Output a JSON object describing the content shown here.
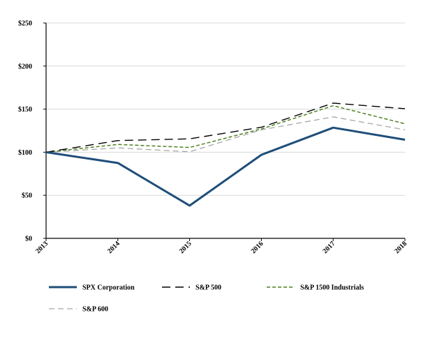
{
  "chart_data": {
    "type": "line",
    "title": "",
    "xlabel": "",
    "ylabel": "",
    "x": [
      "2013",
      "2014",
      "2015",
      "2016",
      "2017",
      "2018"
    ],
    "ylim": [
      0,
      250
    ],
    "yticks": [
      0,
      50,
      100,
      150,
      200,
      250
    ],
    "ytick_labels": [
      "$0",
      "$50",
      "$100",
      "$150",
      "$200",
      "$250"
    ],
    "grid": true,
    "legend_position": "bottom",
    "series": [
      {
        "name": "SPX Corporation",
        "values": [
          100,
          87.5,
          38,
          97,
          128.5,
          114.5
        ],
        "color": "#1f4e79",
        "style": "solid"
      },
      {
        "name": "S&P 500",
        "values": [
          100,
          113.5,
          115.5,
          129,
          157,
          150.5
        ],
        "color": "#000000",
        "style": "long-dash"
      },
      {
        "name": "S&P 1500 Industrials",
        "values": [
          100,
          109,
          105.5,
          127,
          154,
          133
        ],
        "color": "#4f7f1f",
        "style": "short-dash"
      },
      {
        "name": "S&P 600",
        "values": [
          100,
          105,
          100.5,
          126,
          141,
          126
        ],
        "color": "#a6a6a6",
        "style": "dash"
      }
    ]
  }
}
